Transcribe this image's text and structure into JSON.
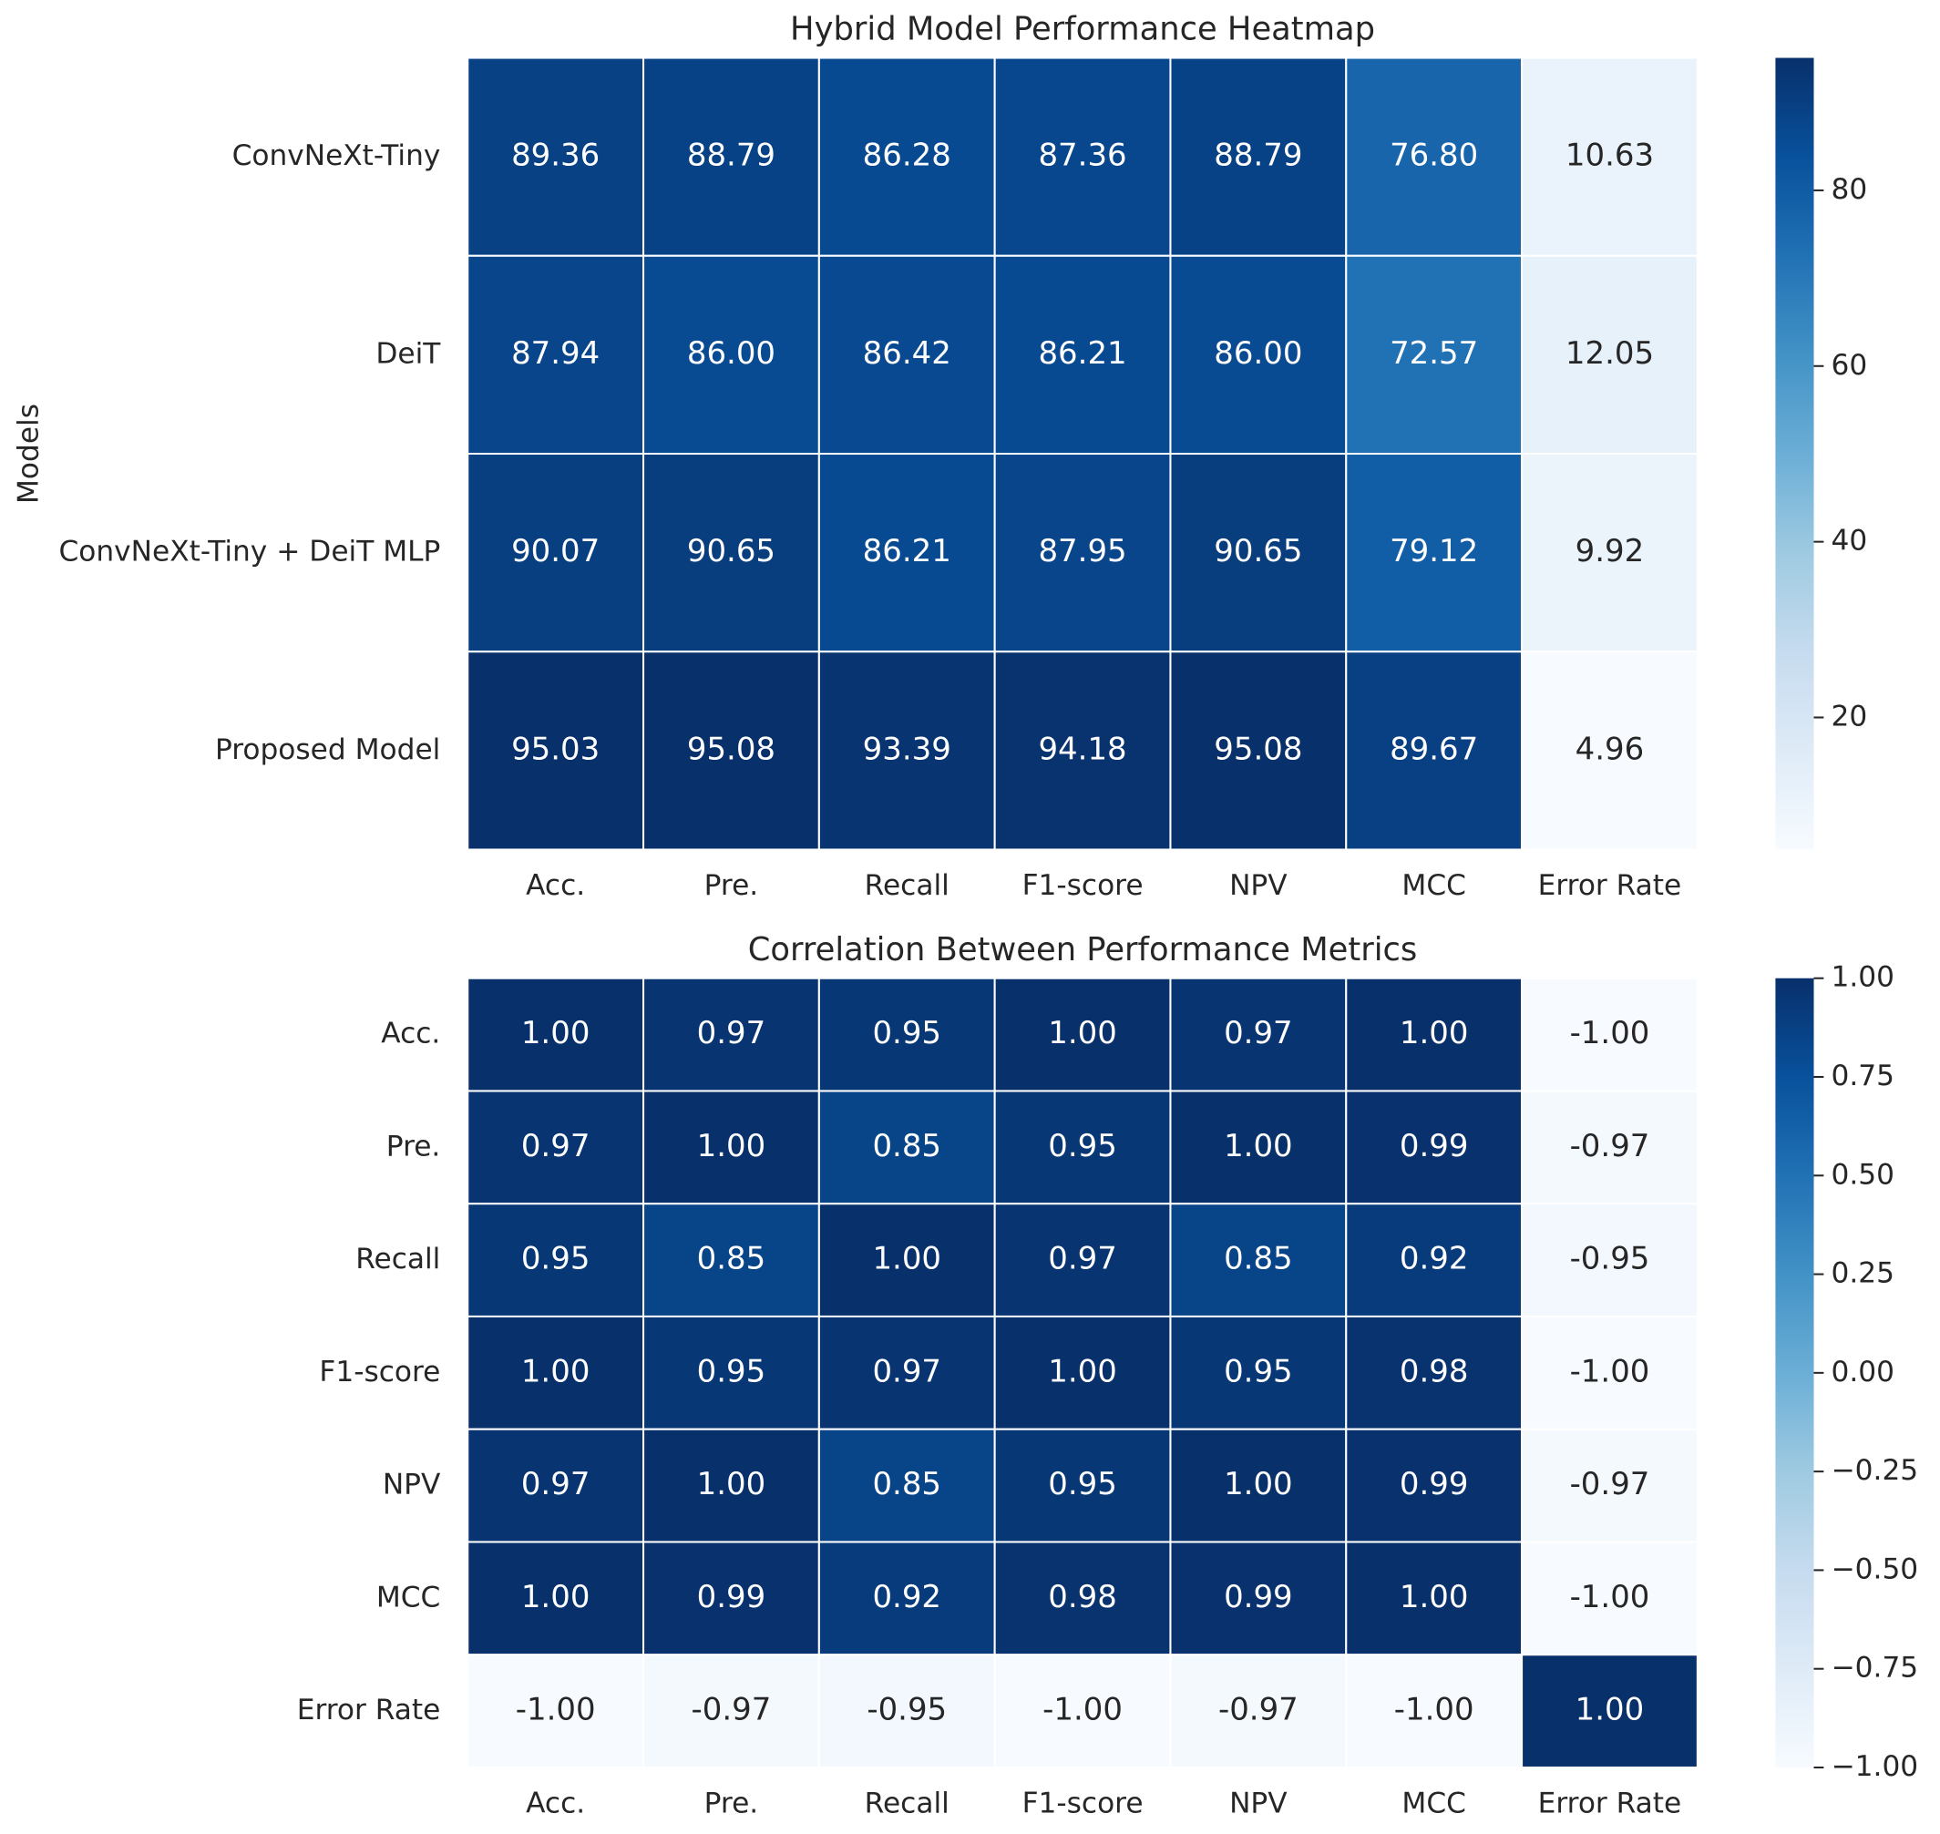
{
  "chart_data": [
    {
      "type": "heatmap",
      "title": "Hybrid Model Performance Heatmap",
      "ylabel": "Models",
      "rows": [
        "ConvNeXt-Tiny",
        "DeiT",
        "ConvNeXt-Tiny + DeiT MLP",
        "Proposed Model"
      ],
      "columns": [
        "Acc.",
        "Pre.",
        "Recall",
        "F1-score",
        "NPV",
        "MCC",
        "Error Rate"
      ],
      "values": [
        [
          89.36,
          88.79,
          86.28,
          87.36,
          88.79,
          76.8,
          10.63
        ],
        [
          87.94,
          86,
          86.42,
          86.21,
          86,
          72.57,
          12.05
        ],
        [
          90.07,
          90.65,
          86.21,
          87.95,
          90.65,
          79.12,
          9.92
        ],
        [
          95.03,
          95.08,
          93.39,
          94.18,
          95.08,
          89.67,
          4.96
        ]
      ],
      "value_labels": [
        [
          "89.36",
          "88.79",
          "86.28",
          "87.36",
          "88.79",
          "76.80",
          "10.63"
        ],
        [
          "87.94",
          "86.00",
          "86.42",
          "86.21",
          "86.00",
          "72.57",
          "12.05"
        ],
        [
          "90.07",
          "90.65",
          "86.21",
          "87.95",
          "90.65",
          "79.12",
          "9.92"
        ],
        [
          "95.03",
          "95.08",
          "93.39",
          "94.18",
          "95.08",
          "89.67",
          "4.96"
        ]
      ],
      "colormap": "Blues",
      "zlim": [
        4.96,
        95.08
      ],
      "zticks": [
        20,
        40,
        60,
        80
      ]
    },
    {
      "type": "heatmap",
      "title": "Correlation Between Performance Metrics",
      "rows": [
        "Acc.",
        "Pre.",
        "Recall",
        "F1-score",
        "NPV",
        "MCC",
        "Error Rate"
      ],
      "columns": [
        "Acc.",
        "Pre.",
        "Recall",
        "F1-score",
        "NPV",
        "MCC",
        "Error Rate"
      ],
      "values": [
        [
          1,
          0.97,
          0.95,
          1,
          0.97,
          1,
          -1
        ],
        [
          0.97,
          1,
          0.85,
          0.95,
          1,
          0.99,
          -0.97
        ],
        [
          0.95,
          0.85,
          1,
          0.97,
          0.85,
          0.92,
          -0.95
        ],
        [
          1,
          0.95,
          0.97,
          1,
          0.95,
          0.98,
          -1
        ],
        [
          0.97,
          1,
          0.85,
          0.95,
          1,
          0.99,
          -0.97
        ],
        [
          1,
          0.99,
          0.92,
          0.98,
          0.99,
          1,
          -1
        ],
        [
          -1,
          -0.97,
          -0.95,
          -1,
          -0.97,
          -1,
          1
        ]
      ],
      "value_labels": [
        [
          "1.00",
          "0.97",
          "0.95",
          "1.00",
          "0.97",
          "1.00",
          "-1.00"
        ],
        [
          "0.97",
          "1.00",
          "0.85",
          "0.95",
          "1.00",
          "0.99",
          "-0.97"
        ],
        [
          "0.95",
          "0.85",
          "1.00",
          "0.97",
          "0.85",
          "0.92",
          "-0.95"
        ],
        [
          "1.00",
          "0.95",
          "0.97",
          "1.00",
          "0.95",
          "0.98",
          "-1.00"
        ],
        [
          "0.97",
          "1.00",
          "0.85",
          "0.95",
          "1.00",
          "0.99",
          "-0.97"
        ],
        [
          "1.00",
          "0.99",
          "0.92",
          "0.98",
          "0.99",
          "1.00",
          "-1.00"
        ],
        [
          "-1.00",
          "-0.97",
          "-0.95",
          "-1.00",
          "-0.97",
          "-1.00",
          "1.00"
        ]
      ],
      "colormap": "Blues",
      "zlim": [
        -1,
        1
      ],
      "zticks": [
        {
          "value": -1,
          "label": "−1.00"
        },
        {
          "value": -0.75,
          "label": "−0.75"
        },
        {
          "value": -0.5,
          "label": "−0.50"
        },
        {
          "value": -0.25,
          "label": "−0.25"
        },
        {
          "value": 0,
          "label": "0.00"
        },
        {
          "value": 0.25,
          "label": "0.25"
        },
        {
          "value": 0.5,
          "label": "0.50"
        },
        {
          "value": 0.75,
          "label": "0.75"
        },
        {
          "value": 1,
          "label": "1.00"
        }
      ]
    }
  ]
}
